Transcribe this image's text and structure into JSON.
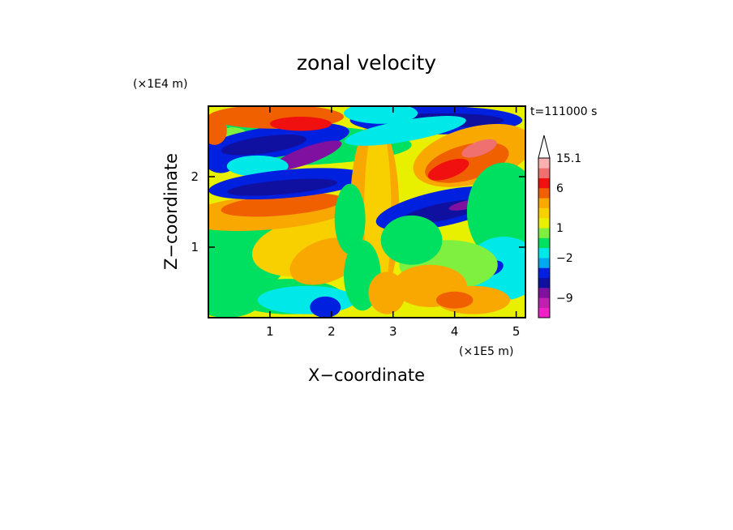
{
  "chart_data": {
    "type": "heatmap",
    "title": "zonal velocity",
    "xlabel": "X−coordinate",
    "ylabel": "Z−coordinate",
    "x_unit": "(×1E5 m)",
    "y_unit": "(×1E4 m)",
    "time_label": "t=111000 s",
    "xlim": [
      0,
      5.15
    ],
    "ylim": [
      0,
      3
    ],
    "x_ticks": [
      "1",
      "2",
      "3",
      "4",
      "5"
    ],
    "y_ticks": [
      "1",
      "2"
    ],
    "colorbar": {
      "labels": [
        "15.1",
        "6",
        "1",
        "−2",
        "−9"
      ],
      "label_values": [
        15.1,
        6,
        1,
        -2,
        -9
      ],
      "levels": [
        -15,
        -12,
        -9,
        -7,
        -5,
        -3,
        -2,
        -1,
        0,
        1,
        2,
        3,
        4,
        6,
        9,
        12,
        15.1
      ],
      "colors": [
        "#f020c8",
        "#c020b0",
        "#8010a0",
        "#1010a0",
        "#0020e0",
        "#00a8f0",
        "#00e8e8",
        "#00e060",
        "#80f040",
        "#e8f000",
        "#f8d000",
        "#f8a800",
        "#f06000",
        "#f01010",
        "#f07070",
        "#f8b0b0"
      ],
      "extend_top": true
    }
  }
}
